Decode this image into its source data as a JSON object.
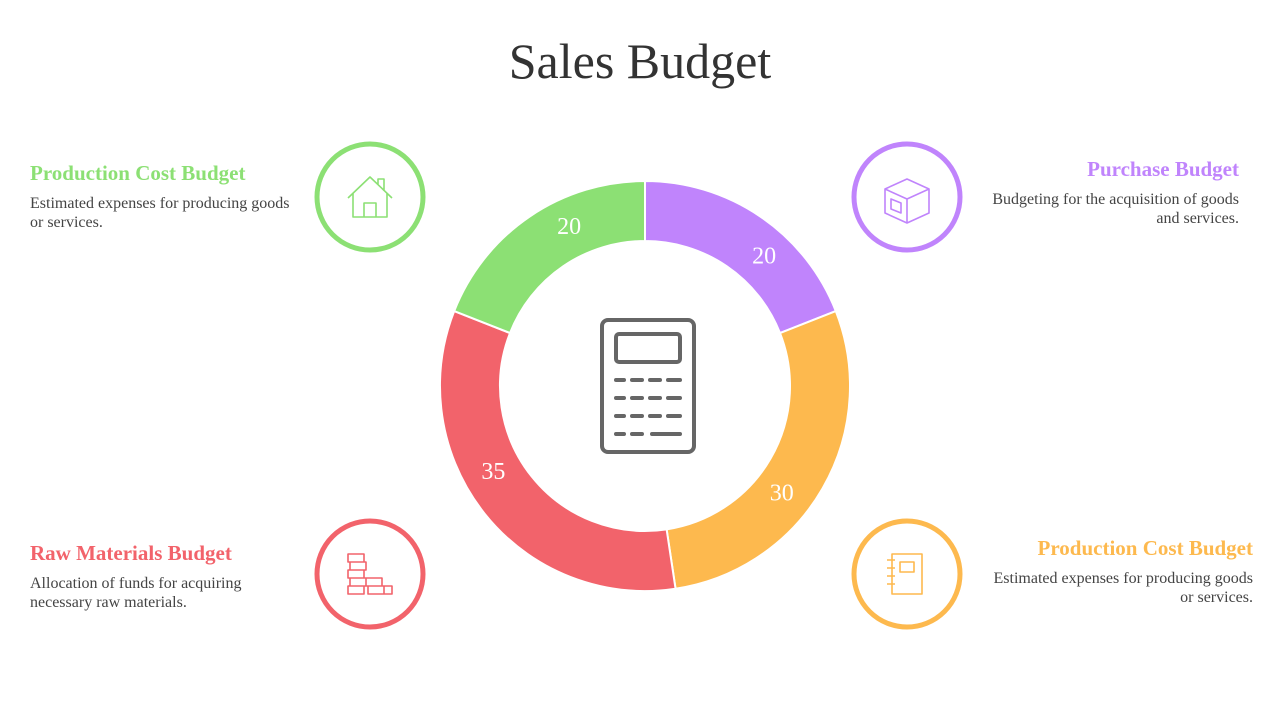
{
  "chart_data": {
    "type": "donut",
    "title": "Sales Budget",
    "categories": [
      "Purchase Budget",
      "Production Cost Budget",
      "Raw Materials Budget",
      "Production Cost Budget"
    ],
    "values": [
      20,
      30,
      35,
      20
    ],
    "colors": [
      "#c084fc",
      "#fdb94e",
      "#f2636b",
      "#8ce074"
    ],
    "descriptions": [
      "Budgeting for the acquisition of goods and services.",
      "Estimated expenses for producing goods or services.",
      "Allocation of funds for acquiring necessary raw materials.",
      "Estimated expenses for producing goods or services."
    ]
  }
}
